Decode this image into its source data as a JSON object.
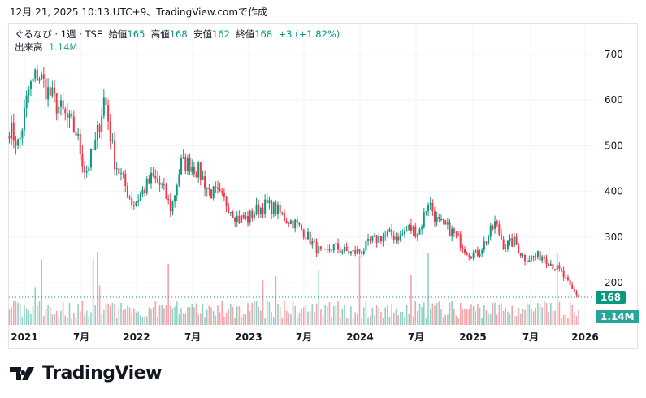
{
  "caption": "12月 21, 2025 10:13 UTC+9、TradingView.comで作成",
  "legend": {
    "symbol": "ぐるなび · 1週 · TSE",
    "open_label": "始値",
    "open": "165",
    "high_label": "高値",
    "high": "168",
    "low_label": "安値",
    "low": "162",
    "close_label": "終値",
    "close": "168",
    "change": "+3 (+1.82%)",
    "volume_label": "出来高",
    "volume": "1.14M"
  },
  "badges": {
    "price": "168",
    "volume": "1.14M"
  },
  "logo": "TradingView",
  "colors": {
    "up": "#089981",
    "down": "#f23645",
    "vol_up": "#8fd1c6",
    "vol_down": "#f5a3a8"
  },
  "chart_data": {
    "type": "candlestick",
    "title": "ぐるなび · 1週 · TSE",
    "y_ticks": [
      200,
      300,
      400,
      500,
      600,
      700
    ],
    "x_ticks": [
      "2021",
      "7月",
      "2022",
      "7月",
      "2023",
      "7月",
      "2024",
      "7月",
      "2025",
      "7月",
      "2026"
    ],
    "ylim": [
      130,
      760
    ],
    "monthly_approx_close": [
      [
        "2020-12",
        540
      ],
      [
        "2021-01",
        500
      ],
      [
        "2021-02",
        620
      ],
      [
        "2021-03",
        660
      ],
      [
        "2021-04",
        620
      ],
      [
        "2021-05",
        590
      ],
      [
        "2021-06",
        560
      ],
      [
        "2021-07",
        530
      ],
      [
        "2021-08",
        440
      ],
      [
        "2021-09",
        500
      ],
      [
        "2021-10",
        610
      ],
      [
        "2021-11",
        470
      ],
      [
        "2021-12",
        420
      ],
      [
        "2022-01",
        370
      ],
      [
        "2022-02",
        400
      ],
      [
        "2022-03",
        430
      ],
      [
        "2022-04",
        410
      ],
      [
        "2022-05",
        360
      ],
      [
        "2022-06",
        460
      ],
      [
        "2022-07",
        460
      ],
      [
        "2022-08",
        440
      ],
      [
        "2022-09",
        400
      ],
      [
        "2022-10",
        390
      ],
      [
        "2022-11",
        370
      ],
      [
        "2022-12",
        340
      ],
      [
        "2023-01",
        340
      ],
      [
        "2023-02",
        360
      ],
      [
        "2023-03",
        370
      ],
      [
        "2023-04",
        360
      ],
      [
        "2023-05",
        340
      ],
      [
        "2023-06",
        330
      ],
      [
        "2023-07",
        310
      ],
      [
        "2023-08",
        280
      ],
      [
        "2023-09",
        260
      ],
      [
        "2023-10",
        280
      ],
      [
        "2023-11",
        270
      ],
      [
        "2023-12",
        265
      ],
      [
        "2024-01",
        270
      ],
      [
        "2024-02",
        290
      ],
      [
        "2024-03",
        300
      ],
      [
        "2024-04",
        305
      ],
      [
        "2024-05",
        300
      ],
      [
        "2024-06",
        320
      ],
      [
        "2024-07",
        310
      ],
      [
        "2024-08",
        380
      ],
      [
        "2024-09",
        330
      ],
      [
        "2024-10",
        320
      ],
      [
        "2024-11",
        300
      ],
      [
        "2024-12",
        270
      ],
      [
        "2025-01",
        260
      ],
      [
        "2025-02",
        290
      ],
      [
        "2025-03",
        330
      ],
      [
        "2025-04",
        280
      ],
      [
        "2025-05",
        290
      ],
      [
        "2025-06",
        255
      ],
      [
        "2025-07",
        255
      ],
      [
        "2025-08",
        260
      ],
      [
        "2025-09",
        240
      ],
      [
        "2025-10",
        220
      ],
      [
        "2025-11",
        185
      ],
      [
        "2025-12",
        168
      ]
    ],
    "last": {
      "open": 165,
      "high": 168,
      "low": 162,
      "close": 168,
      "volume": "1.14M"
    }
  }
}
